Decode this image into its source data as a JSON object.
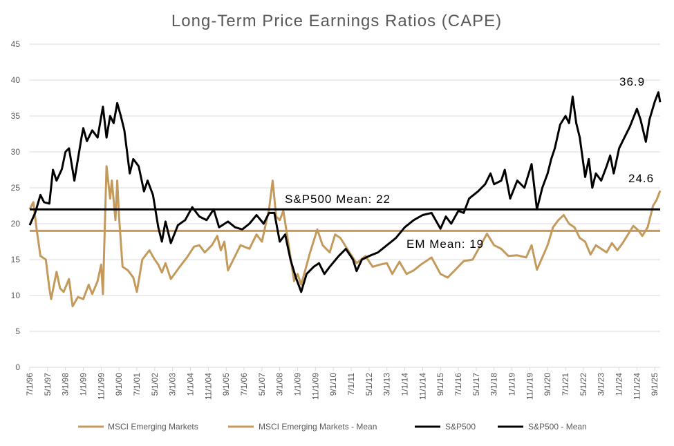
{
  "chart_data": {
    "type": "line",
    "title": "Long-Term Price Earnings Ratios (CAPE)",
    "xlabel": "",
    "ylabel": "",
    "ylim": [
      0,
      45
    ],
    "yticks": [
      0,
      5,
      10,
      15,
      20,
      25,
      30,
      35,
      40,
      45
    ],
    "grid": true,
    "legend_position": "bottom",
    "x_tick_labels": [
      "7/1/96",
      "5/1/97",
      "3/1/98",
      "1/1/99",
      "11/1/99",
      "9/1/00",
      "7/1/01",
      "5/1/02",
      "3/1/03",
      "1/1/04",
      "11/1/04",
      "9/1/05",
      "7/1/06",
      "5/1/07",
      "3/1/08",
      "1/1/09",
      "11/1/09",
      "9/1/10",
      "7/1/11",
      "5/1/12",
      "3/1/13",
      "1/1/14",
      "11/1/14",
      "9/1/15",
      "7/1/16",
      "5/1/17",
      "3/1/18",
      "1/1/19",
      "11/1/19",
      "9/1/20",
      "7/1/21",
      "5/1/22",
      "3/1/23",
      "1/1/24",
      "11/1/24",
      "9/1/25"
    ],
    "x_range": [
      "1996-07",
      "2025-12"
    ],
    "series": [
      {
        "name": "MSCI Emerging Markets",
        "color": "#C49A5C",
        "points": [
          [
            "1996-07",
            22
          ],
          [
            "1996-09",
            23
          ],
          [
            "1996-11",
            19
          ],
          [
            "1997-01",
            15.5
          ],
          [
            "1997-04",
            15
          ],
          [
            "1997-06",
            11
          ],
          [
            "1997-07",
            9.5
          ],
          [
            "1997-10",
            13.3
          ],
          [
            "1997-12",
            11
          ],
          [
            "1998-02",
            10.5
          ],
          [
            "1998-05",
            12.3
          ],
          [
            "1998-07",
            8.5
          ],
          [
            "1998-10",
            9.8
          ],
          [
            "1999-01",
            9.5
          ],
          [
            "1999-04",
            11.5
          ],
          [
            "1999-06",
            10.2
          ],
          [
            "1999-09",
            12
          ],
          [
            "1999-11",
            14.3
          ],
          [
            "1999-12",
            10.2
          ],
          [
            "2000-02",
            28
          ],
          [
            "2000-04",
            23.5
          ],
          [
            "2000-05",
            26
          ],
          [
            "2000-07",
            20.5
          ],
          [
            "2000-08",
            26
          ],
          [
            "2000-09",
            21
          ],
          [
            "2000-11",
            14
          ],
          [
            "2001-02",
            13.5
          ],
          [
            "2001-05",
            12.5
          ],
          [
            "2001-07",
            10.5
          ],
          [
            "2001-10",
            15
          ],
          [
            "2002-02",
            16.3
          ],
          [
            "2002-05",
            15
          ],
          [
            "2002-07",
            14.3
          ],
          [
            "2002-09",
            13.2
          ],
          [
            "2002-11",
            14.5
          ],
          [
            "2003-02",
            12.3
          ],
          [
            "2003-07",
            14
          ],
          [
            "2003-11",
            15.3
          ],
          [
            "2004-03",
            16.8
          ],
          [
            "2004-06",
            17
          ],
          [
            "2004-09",
            16
          ],
          [
            "2005-01",
            17
          ],
          [
            "2005-04",
            18.3
          ],
          [
            "2005-06",
            16.3
          ],
          [
            "2005-08",
            17.5
          ],
          [
            "2005-10",
            13.5
          ],
          [
            "2006-01",
            15
          ],
          [
            "2006-05",
            17
          ],
          [
            "2006-10",
            16.5
          ],
          [
            "2007-02",
            18.5
          ],
          [
            "2007-05",
            17.5
          ],
          [
            "2007-09",
            22
          ],
          [
            "2007-11",
            26
          ],
          [
            "2008-01",
            21
          ],
          [
            "2008-03",
            20.5
          ],
          [
            "2008-05",
            21.8
          ],
          [
            "2008-08",
            17
          ],
          [
            "2008-11",
            12
          ],
          [
            "2009-01",
            13
          ],
          [
            "2009-03",
            11.5
          ],
          [
            "2009-08",
            16
          ],
          [
            "2009-12",
            19.2
          ],
          [
            "2010-03",
            17
          ],
          [
            "2010-07",
            16
          ],
          [
            "2010-10",
            18.5
          ],
          [
            "2011-01",
            18
          ],
          [
            "2011-06",
            16
          ],
          [
            "2011-10",
            14.5
          ],
          [
            "2012-03",
            15.5
          ],
          [
            "2012-07",
            14
          ],
          [
            "2012-11",
            14.3
          ],
          [
            "2013-03",
            14.5
          ],
          [
            "2013-06",
            13
          ],
          [
            "2013-10",
            14.7
          ],
          [
            "2014-02",
            13
          ],
          [
            "2014-06",
            13.5
          ],
          [
            "2014-10",
            14.3
          ],
          [
            "2015-04",
            15.3
          ],
          [
            "2015-09",
            13
          ],
          [
            "2016-01",
            12.5
          ],
          [
            "2016-05",
            13.5
          ],
          [
            "2016-10",
            14.8
          ],
          [
            "2017-03",
            15
          ],
          [
            "2017-07",
            16.8
          ],
          [
            "2017-11",
            18.6
          ],
          [
            "2018-03",
            17
          ],
          [
            "2018-07",
            16.5
          ],
          [
            "2018-11",
            15.5
          ],
          [
            "2019-04",
            15.6
          ],
          [
            "2019-09",
            15.3
          ],
          [
            "2019-12",
            17
          ],
          [
            "2020-03",
            13.6
          ],
          [
            "2020-06",
            15.3
          ],
          [
            "2020-09",
            17
          ],
          [
            "2020-12",
            19.5
          ],
          [
            "2021-03",
            20.5
          ],
          [
            "2021-06",
            21.2
          ],
          [
            "2021-09",
            20
          ],
          [
            "2021-12",
            19.5
          ],
          [
            "2022-03",
            18
          ],
          [
            "2022-06",
            17.5
          ],
          [
            "2022-09",
            15.7
          ],
          [
            "2022-12",
            17
          ],
          [
            "2023-03",
            16.5
          ],
          [
            "2023-06",
            16
          ],
          [
            "2023-09",
            17.3
          ],
          [
            "2023-12",
            16.3
          ],
          [
            "2024-03",
            17.3
          ],
          [
            "2024-06",
            18.5
          ],
          [
            "2024-09",
            19.7
          ],
          [
            "2024-12",
            19
          ],
          [
            "2025-02",
            18.3
          ],
          [
            "2025-05",
            19.5
          ],
          [
            "2025-08",
            22.5
          ],
          [
            "2025-10",
            23.3
          ],
          [
            "2025-12",
            24.6
          ]
        ]
      },
      {
        "name": "MSCI Emerging Markets - Mean",
        "color": "#C49A5C",
        "value": 19
      },
      {
        "name": "S&P500",
        "color": "#000000",
        "points": [
          [
            "1996-07",
            19.8
          ],
          [
            "1996-10",
            21.5
          ],
          [
            "1997-01",
            24
          ],
          [
            "1997-03",
            23
          ],
          [
            "1997-06",
            22.8
          ],
          [
            "1997-08",
            27.5
          ],
          [
            "1997-10",
            26
          ],
          [
            "1998-01",
            27.6
          ],
          [
            "1998-03",
            30
          ],
          [
            "1998-05",
            30.5
          ],
          [
            "1998-08",
            26
          ],
          [
            "1998-12",
            32
          ],
          [
            "1999-01",
            33.3
          ],
          [
            "1999-03",
            31.5
          ],
          [
            "1999-06",
            33
          ],
          [
            "1999-09",
            32
          ],
          [
            "1999-12",
            36.3
          ],
          [
            "2000-02",
            32
          ],
          [
            "2000-04",
            35
          ],
          [
            "2000-06",
            34
          ],
          [
            "2000-08",
            36.8
          ],
          [
            "2000-10",
            35
          ],
          [
            "2000-12",
            33
          ],
          [
            "2001-03",
            27
          ],
          [
            "2001-05",
            29
          ],
          [
            "2001-08",
            28
          ],
          [
            "2001-11",
            24.5
          ],
          [
            "2002-01",
            26
          ],
          [
            "2002-04",
            24
          ],
          [
            "2002-07",
            19.5
          ],
          [
            "2002-09",
            17.5
          ],
          [
            "2002-11",
            20.3
          ],
          [
            "2003-02",
            17.3
          ],
          [
            "2003-06",
            19.8
          ],
          [
            "2003-10",
            20.5
          ],
          [
            "2004-02",
            22.3
          ],
          [
            "2004-06",
            21
          ],
          [
            "2004-10",
            20.5
          ],
          [
            "2005-02",
            22
          ],
          [
            "2005-05",
            19.5
          ],
          [
            "2005-10",
            20.3
          ],
          [
            "2006-02",
            19.5
          ],
          [
            "2006-06",
            19.2
          ],
          [
            "2006-10",
            20
          ],
          [
            "2007-02",
            21.2
          ],
          [
            "2007-06",
            20
          ],
          [
            "2007-09",
            21.5
          ],
          [
            "2007-12",
            21.5
          ],
          [
            "2008-03",
            17.5
          ],
          [
            "2008-06",
            18.5
          ],
          [
            "2008-09",
            15
          ],
          [
            "2008-12",
            12.5
          ],
          [
            "2009-03",
            10.5
          ],
          [
            "2009-06",
            13
          ],
          [
            "2009-10",
            14
          ],
          [
            "2010-01",
            14.5
          ],
          [
            "2010-04",
            13
          ],
          [
            "2010-07",
            14
          ],
          [
            "2010-12",
            15.5
          ],
          [
            "2011-04",
            16.5
          ],
          [
            "2011-08",
            15
          ],
          [
            "2011-10",
            13.4
          ],
          [
            "2012-01",
            15
          ],
          [
            "2012-05",
            15.5
          ],
          [
            "2012-10",
            16
          ],
          [
            "2013-03",
            17
          ],
          [
            "2013-08",
            18
          ],
          [
            "2014-01",
            19.5
          ],
          [
            "2014-06",
            20.5
          ],
          [
            "2014-11",
            21.2
          ],
          [
            "2015-04",
            21.5
          ],
          [
            "2015-09",
            19.3
          ],
          [
            "2015-12",
            21
          ],
          [
            "2016-03",
            20
          ],
          [
            "2016-07",
            21.8
          ],
          [
            "2016-10",
            21.5
          ],
          [
            "2017-01",
            23.5
          ],
          [
            "2017-06",
            24.5
          ],
          [
            "2017-10",
            25.5
          ],
          [
            "2018-01",
            27
          ],
          [
            "2018-03",
            25.5
          ],
          [
            "2018-07",
            26
          ],
          [
            "2018-09",
            27.5
          ],
          [
            "2018-12",
            23.5
          ],
          [
            "2019-04",
            26
          ],
          [
            "2019-08",
            25
          ],
          [
            "2019-12",
            28.3
          ],
          [
            "2020-03",
            22
          ],
          [
            "2020-06",
            25
          ],
          [
            "2020-09",
            27
          ],
          [
            "2020-11",
            29
          ],
          [
            "2021-01",
            30.5
          ],
          [
            "2021-04",
            33.8
          ],
          [
            "2021-07",
            35
          ],
          [
            "2021-09",
            34
          ],
          [
            "2021-11",
            37.7
          ],
          [
            "2022-01",
            34
          ],
          [
            "2022-03",
            32
          ],
          [
            "2022-06",
            26.5
          ],
          [
            "2022-08",
            29
          ],
          [
            "2022-10",
            25
          ],
          [
            "2022-12",
            27
          ],
          [
            "2023-03",
            26
          ],
          [
            "2023-06",
            28
          ],
          [
            "2023-08",
            29.5
          ],
          [
            "2023-10",
            27
          ],
          [
            "2024-01",
            30.5
          ],
          [
            "2024-04",
            32
          ],
          [
            "2024-07",
            33.5
          ],
          [
            "2024-11",
            36
          ],
          [
            "2025-01",
            34.5
          ],
          [
            "2025-04",
            31.4
          ],
          [
            "2025-06",
            34.5
          ],
          [
            "2025-09",
            37
          ],
          [
            "2025-11",
            38.3
          ],
          [
            "2025-12",
            36.9
          ]
        ]
      },
      {
        "name": "S&P500 - Mean",
        "color": "#000000",
        "value": 22
      }
    ],
    "annotations": {
      "sp_mean": "S&P500 Mean: 22",
      "em_mean": "EM Mean: 19",
      "sp_last": "36.9",
      "em_last": "24.6"
    }
  }
}
